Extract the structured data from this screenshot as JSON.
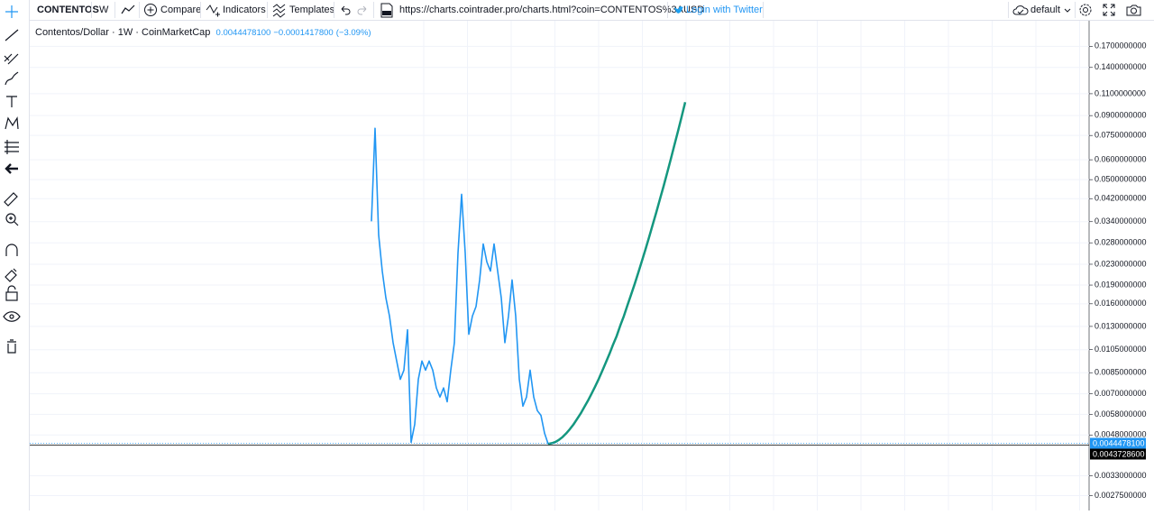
{
  "toolbar": {
    "symbol": "CONTENTOS",
    "interval": "W",
    "compare": "Compare",
    "indicators": "Indicators",
    "templates": "Templates",
    "url": "https://charts.cointrader.pro/charts.html?coin=CONTENTOS%3AUSD",
    "login": "Login with Twitter",
    "layout": "default"
  },
  "chart_data": {
    "type": "line",
    "symbol": "Contentos/Dollar",
    "interval": "1W",
    "source": "CoinMarketCap",
    "last": "0.0044478100",
    "change": "−0.0001417800",
    "change_pct": "(−3.09%)",
    "log_scale": true,
    "grid": true,
    "categories": [
      null,
      null,
      null,
      null,
      null,
      null,
      null,
      null,
      null,
      null,
      null,
      null,
      null,
      null,
      null,
      null,
      null,
      null,
      null,
      null,
      null,
      null,
      null,
      null,
      null,
      null,
      null,
      null,
      null,
      null,
      null,
      null,
      null,
      null,
      null,
      null,
      null,
      null,
      null,
      null,
      null,
      null,
      null,
      null,
      null,
      null,
      null,
      null,
      null,
      null,
      null,
      null,
      null,
      null,
      null,
      null,
      null,
      null,
      null,
      null,
      null,
      null,
      null,
      null,
      null,
      null,
      null,
      null,
      null,
      null,
      null,
      null,
      null,
      null,
      null,
      null,
      null,
      null,
      null,
      null,
      null,
      null,
      null,
      null,
      null,
      null,
      null,
      null
    ],
    "series": [
      {
        "color": "#2196f3",
        "values": [
          0.0341,
          0.0801,
          0.0301,
          0.0216,
          0.0169,
          0.0143,
          0.0112,
          0.00946,
          0.008,
          0.0087,
          0.0126,
          0.00449,
          0.00529,
          0.008,
          0.00946,
          0.0087,
          0.00946,
          0.0087,
          0.00739,
          0.0068,
          0.00739,
          0.00651,
          0.0087,
          0.0112,
          0.0255,
          0.0437,
          0.0255,
          0.0121,
          0.0143,
          0.0156,
          0.0199,
          0.0277,
          0.0235,
          0.0216,
          0.0277,
          0.0216,
          0.0169,
          0.0112,
          0.0143,
          0.0199,
          0.0143,
          0.008,
          0.00625,
          0.0068,
          0.0087,
          0.0068,
          0.006,
          0.00575,
          0.00488,
          0.00442,
          null,
          null,
          null,
          null,
          null,
          null,
          null,
          null,
          null,
          null,
          null,
          null,
          null,
          null,
          null,
          null,
          null,
          null,
          null,
          null,
          null,
          null,
          null,
          null,
          null,
          null,
          null,
          null,
          null,
          null,
          null,
          null,
          null,
          null,
          null,
          null,
          null,
          null
        ]
      },
      {
        "color": "#14977f",
        "values": [
          null,
          null,
          null,
          null,
          null,
          null,
          null,
          null,
          null,
          null,
          null,
          null,
          null,
          null,
          null,
          null,
          null,
          null,
          null,
          null,
          null,
          null,
          null,
          null,
          null,
          null,
          null,
          null,
          null,
          null,
          null,
          null,
          null,
          null,
          null,
          null,
          null,
          null,
          null,
          null,
          null,
          null,
          null,
          null,
          null,
          null,
          null,
          null,
          null,
          0.00442,
          0.00445,
          0.0045,
          0.00459,
          0.00471,
          0.00487,
          0.00506,
          0.00528,
          0.00555,
          0.00584,
          0.00619,
          0.00656,
          0.00699,
          0.00747,
          0.00801,
          0.00864,
          0.00934,
          0.0101,
          0.011,
          0.0119,
          0.0131,
          0.0143,
          0.0158,
          0.0174,
          0.0192,
          0.0213,
          0.0237,
          0.0264,
          0.0295,
          0.0331,
          0.0371,
          0.0418,
          0.047,
          0.0532,
          0.0603,
          0.0686,
          0.0779,
          0.0889,
          0.1018
        ]
      }
    ],
    "ylim": [
      0.0024,
      0.26
    ],
    "yticks": [
      {
        "value": 0.17,
        "label": "0.1700000000"
      },
      {
        "value": 0.14,
        "label": "0.1400000000"
      },
      {
        "value": 0.11,
        "label": "0.1100000000"
      },
      {
        "value": 0.09,
        "label": "0.0900000000"
      },
      {
        "value": 0.075,
        "label": "0.0750000000"
      },
      {
        "value": 0.06,
        "label": "0.0600000000"
      },
      {
        "value": 0.05,
        "label": "0.0500000000"
      },
      {
        "value": 0.042,
        "label": "0.0420000000"
      },
      {
        "value": 0.034,
        "label": "0.0340000000"
      },
      {
        "value": 0.028,
        "label": "0.0280000000"
      },
      {
        "value": 0.023,
        "label": "0.0230000000"
      },
      {
        "value": 0.019,
        "label": "0.0190000000"
      },
      {
        "value": 0.016,
        "label": "0.0160000000"
      },
      {
        "value": 0.013,
        "label": "0.0130000000"
      },
      {
        "value": 0.0105,
        "label": "0.0105000000"
      },
      {
        "value": 0.0085,
        "label": "0.0085000000"
      },
      {
        "value": 0.007,
        "label": "0.0070000000"
      },
      {
        "value": 0.0058,
        "label": "0.0058000000"
      },
      {
        "value": 0.0048,
        "label": "0.0048000000"
      },
      {
        "value": 0.0033,
        "label": "0.0033000000"
      },
      {
        "value": 0.00275,
        "label": "0.0027500000"
      }
    ],
    "price_lines": [
      {
        "value": 0.00444781,
        "label": "0.0044478100",
        "color": "#2196f3"
      },
      {
        "value": 0.00437286,
        "label": "0.0043728600",
        "color": "#000000"
      }
    ]
  }
}
